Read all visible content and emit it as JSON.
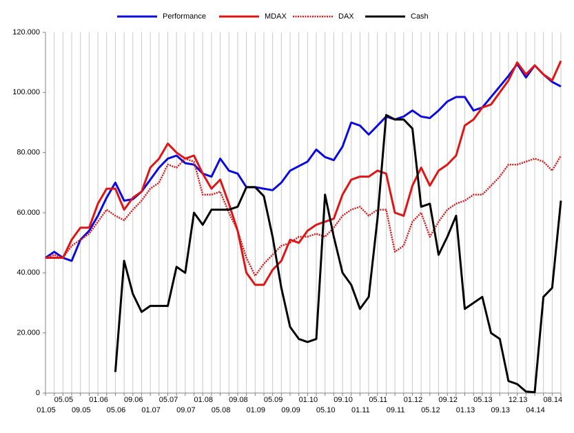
{
  "chart_data": {
    "type": "line",
    "categories": [
      "01.05",
      null,
      "05.05",
      null,
      "09.05",
      null,
      "01.06",
      null,
      "05.06",
      null,
      "09.06",
      null,
      "01.07",
      null,
      "05.07",
      null,
      "09.07",
      null,
      "01.08",
      null,
      "05.08",
      null,
      "09.08",
      null,
      "01.09",
      null,
      "05.09",
      null,
      "09.09",
      null,
      "01.10",
      null,
      "05.10",
      null,
      "09.10",
      null,
      "01.11",
      null,
      "05.11",
      null,
      "09.11",
      null,
      "01.12",
      null,
      "05.12",
      null,
      "09.12",
      null,
      "01.13",
      null,
      "05.13",
      null,
      "09.13",
      null,
      "12.13",
      null,
      "04.14",
      null,
      "08.14",
      null
    ],
    "series": [
      {
        "name": "Performance",
        "color": "#0a0ae0",
        "style": "solid",
        "values": [
          45000,
          47000,
          45000,
          44000,
          51000,
          54000,
          59000,
          65000,
          70000,
          64000,
          64500,
          67000,
          71000,
          75000,
          78000,
          79000,
          76500,
          76000,
          73000,
          72000,
          78000,
          74000,
          73000,
          68500,
          68500,
          68000,
          67500,
          70000,
          74000,
          75500,
          77000,
          81000,
          78500,
          77500,
          82000,
          90000,
          89000,
          86000,
          89000,
          92000,
          91000,
          92000,
          94000,
          92000,
          91500,
          94000,
          97000,
          98500,
          98500,
          94000,
          95000,
          98500,
          102000,
          105500,
          109500,
          105000,
          109000,
          106000,
          103500,
          102000
        ]
      },
      {
        "name": "MDAX",
        "color": "#e01414",
        "style": "solid",
        "values": [
          45000,
          45000,
          45000,
          51000,
          55000,
          55000,
          63000,
          68000,
          68000,
          61000,
          65000,
          67000,
          75000,
          78000,
          83000,
          80000,
          78000,
          79000,
          73000,
          68000,
          71000,
          63000,
          54000,
          40000,
          36000,
          36000,
          41000,
          44000,
          51000,
          50000,
          54000,
          56000,
          57000,
          58000,
          66000,
          71000,
          72000,
          72000,
          74000,
          73000,
          60000,
          59000,
          69000,
          75000,
          69000,
          74000,
          76000,
          79000,
          89000,
          91000,
          95000,
          96000,
          100000,
          104000,
          110000,
          106000,
          109000,
          106000,
          104000,
          110500
        ]
      },
      {
        "name": "DAX",
        "color": "#e01414",
        "style": "dotted",
        "values": [
          45000,
          46000,
          45000,
          49000,
          51000,
          53000,
          57000,
          61000,
          59000,
          57500,
          61000,
          64000,
          68000,
          70000,
          76000,
          75000,
          78000,
          77000,
          66000,
          66000,
          67000,
          60000,
          54000,
          45000,
          39000,
          43000,
          46000,
          49000,
          50000,
          52000,
          52000,
          53000,
          52000,
          55000,
          59000,
          61000,
          62000,
          59000,
          61000,
          61000,
          47000,
          49000,
          57000,
          60000,
          52000,
          57000,
          61000,
          63000,
          64000,
          66000,
          66000,
          69000,
          72000,
          76000,
          76000,
          77000,
          78000,
          77000,
          74000,
          79000
        ]
      },
      {
        "name": "Cash",
        "color": "#000000",
        "style": "solid",
        "values": [
          null,
          null,
          null,
          null,
          null,
          null,
          null,
          null,
          7000,
          44000,
          33000,
          27000,
          29000,
          29000,
          29000,
          42000,
          40000,
          60000,
          56000,
          61000,
          61000,
          61000,
          62000,
          68500,
          68500,
          65500,
          52000,
          35000,
          22000,
          18000,
          17000,
          18000,
          66000,
          52000,
          40000,
          36000,
          28000,
          32000,
          58000,
          92500,
          91000,
          91000,
          88000,
          62000,
          63000,
          46000,
          52000,
          59000,
          28000,
          30000,
          32000,
          20000,
          18000,
          4000,
          3000,
          500,
          300,
          32000,
          35000,
          64000
        ]
      }
    ],
    "ylim": [
      0,
      120000
    ],
    "yticks": [
      {
        "value": 0,
        "label": "0"
      },
      {
        "value": 20000,
        "label": "20.000"
      },
      {
        "value": 40000,
        "label": "40.000"
      },
      {
        "value": 60000,
        "label": "60.000"
      },
      {
        "value": 80000,
        "label": "80.000"
      },
      {
        "value": 100000,
        "label": "100.000"
      },
      {
        "value": 120000,
        "label": "120.000"
      }
    ],
    "grid": "x",
    "legend": "top"
  }
}
